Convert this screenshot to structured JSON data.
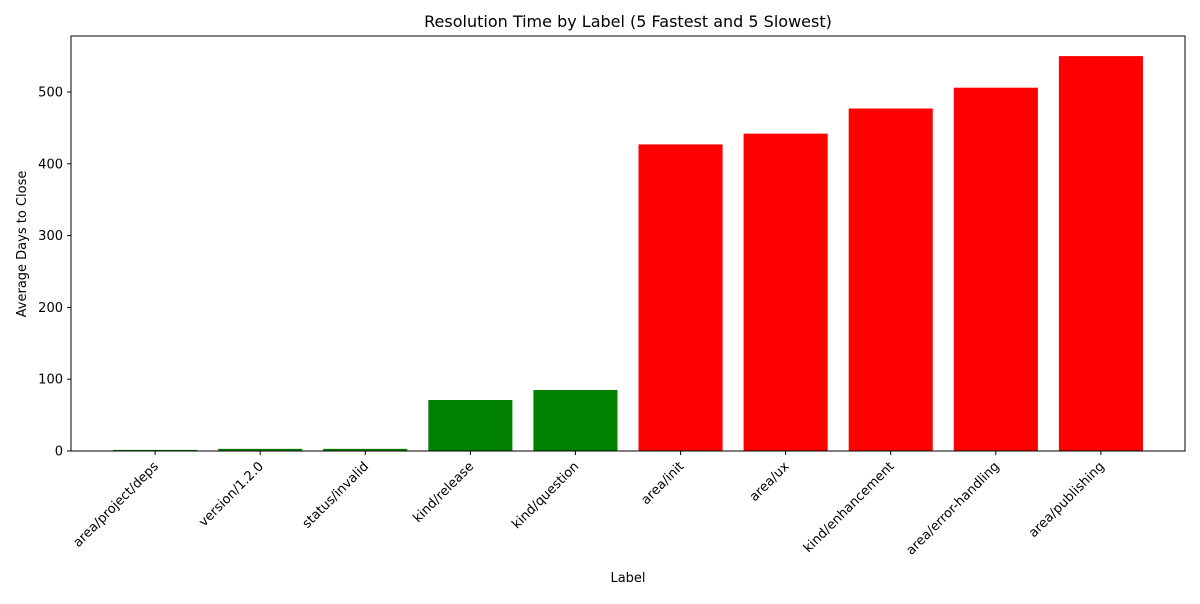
{
  "chart_data": {
    "type": "bar",
    "title": "Resolution Time by Label (5 Fastest and 5 Slowest)",
    "xlabel": "Label",
    "ylabel": "Average Days to Close",
    "categories": [
      "area/project/deps",
      "version/1.2.0",
      "status/invalid",
      "kind/release",
      "kind/question",
      "area/init",
      "area/ux",
      "kind/enhancement",
      "area/error-handling",
      "area/publishing"
    ],
    "values": [
      1.5,
      3,
      3,
      71,
      85,
      427,
      442,
      477,
      506,
      550
    ],
    "bar_colors": [
      "#008000",
      "#008000",
      "#008000",
      "#008000",
      "#008000",
      "#ff0000",
      "#ff0000",
      "#ff0000",
      "#ff0000",
      "#ff0000"
    ],
    "ylim": [
      0,
      578
    ],
    "yticks": [
      0,
      100,
      200,
      300,
      400,
      500
    ],
    "grid": false,
    "legend": "none"
  }
}
